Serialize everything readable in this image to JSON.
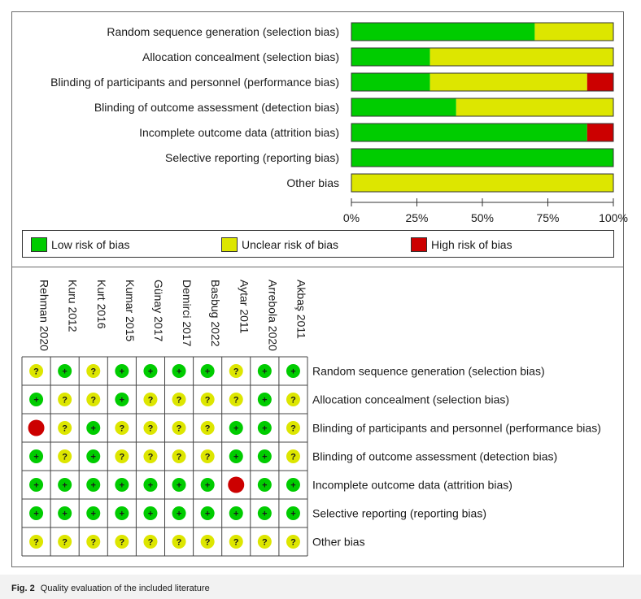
{
  "chart_data": [
    {
      "type": "bar",
      "orientation": "horizontal",
      "stacked": true,
      "categories": [
        "Random sequence generation (selection bias)",
        "Allocation concealment (selection bias)",
        "Blinding of participants and personnel (performance bias)",
        "Blinding of outcome assessment (detection bias)",
        "Incomplete outcome data (attrition bias)",
        "Selective reporting (reporting bias)",
        "Other bias"
      ],
      "series": [
        {
          "name": "Low risk of bias",
          "color": "#00cc00",
          "values": [
            70,
            30,
            30,
            40,
            90,
            100,
            0
          ]
        },
        {
          "name": "Unclear risk of bias",
          "color": "#dde600",
          "values": [
            30,
            70,
            60,
            60,
            0,
            0,
            100
          ]
        },
        {
          "name": "High risk of bias",
          "color": "#cc0000",
          "values": [
            0,
            0,
            10,
            0,
            10,
            0,
            0
          ]
        }
      ],
      "xlim": [
        0,
        100
      ],
      "xticks": [
        0,
        25,
        50,
        75,
        100
      ],
      "xtick_labels": [
        "0%",
        "25%",
        "50%",
        "75%",
        "100%"
      ],
      "legend_position": "bottom",
      "grid": false
    },
    {
      "type": "table",
      "studies": [
        "Rehman 2020",
        "Kuru 2012",
        "Kurt 2016",
        "Kumar 2015",
        "Günay 2017",
        "Demirci 2017",
        "Basbug 2022",
        "Aytar 2011",
        "Arrebola 2020",
        "Akbaş 2011"
      ],
      "domains": [
        "Random sequence generation (selection bias)",
        "Allocation concealment (selection bias)",
        "Blinding of participants and personnel (performance bias)",
        "Blinding of outcome assessment (detection bias)",
        "Incomplete outcome data (attrition bias)",
        "Selective reporting (reporting bias)",
        "Other bias"
      ],
      "judgements": [
        [
          "unclear",
          "low",
          "unclear",
          "low",
          "low",
          "low",
          "low",
          "unclear",
          "low",
          "low"
        ],
        [
          "low",
          "unclear",
          "unclear",
          "low",
          "unclear",
          "unclear",
          "unclear",
          "unclear",
          "low",
          "unclear"
        ],
        [
          "high",
          "unclear",
          "low",
          "unclear",
          "unclear",
          "unclear",
          "unclear",
          "low",
          "low",
          "unclear"
        ],
        [
          "low",
          "unclear",
          "low",
          "unclear",
          "unclear",
          "unclear",
          "unclear",
          "low",
          "low",
          "unclear"
        ],
        [
          "low",
          "low",
          "low",
          "low",
          "low",
          "low",
          "low",
          "high",
          "low",
          "low"
        ],
        [
          "low",
          "low",
          "low",
          "low",
          "low",
          "low",
          "low",
          "low",
          "low",
          "low"
        ],
        [
          "unclear",
          "unclear",
          "unclear",
          "unclear",
          "unclear",
          "unclear",
          "unclear",
          "unclear",
          "unclear",
          "unclear"
        ]
      ],
      "symbols": {
        "low": "+",
        "unclear": "?",
        "high": ""
      },
      "colors": {
        "low": "#00cc00",
        "unclear": "#dde600",
        "high": "#cc0000"
      }
    }
  ],
  "caption": {
    "label": "Fig. 2",
    "text": "Quality evaluation of the included literature"
  }
}
